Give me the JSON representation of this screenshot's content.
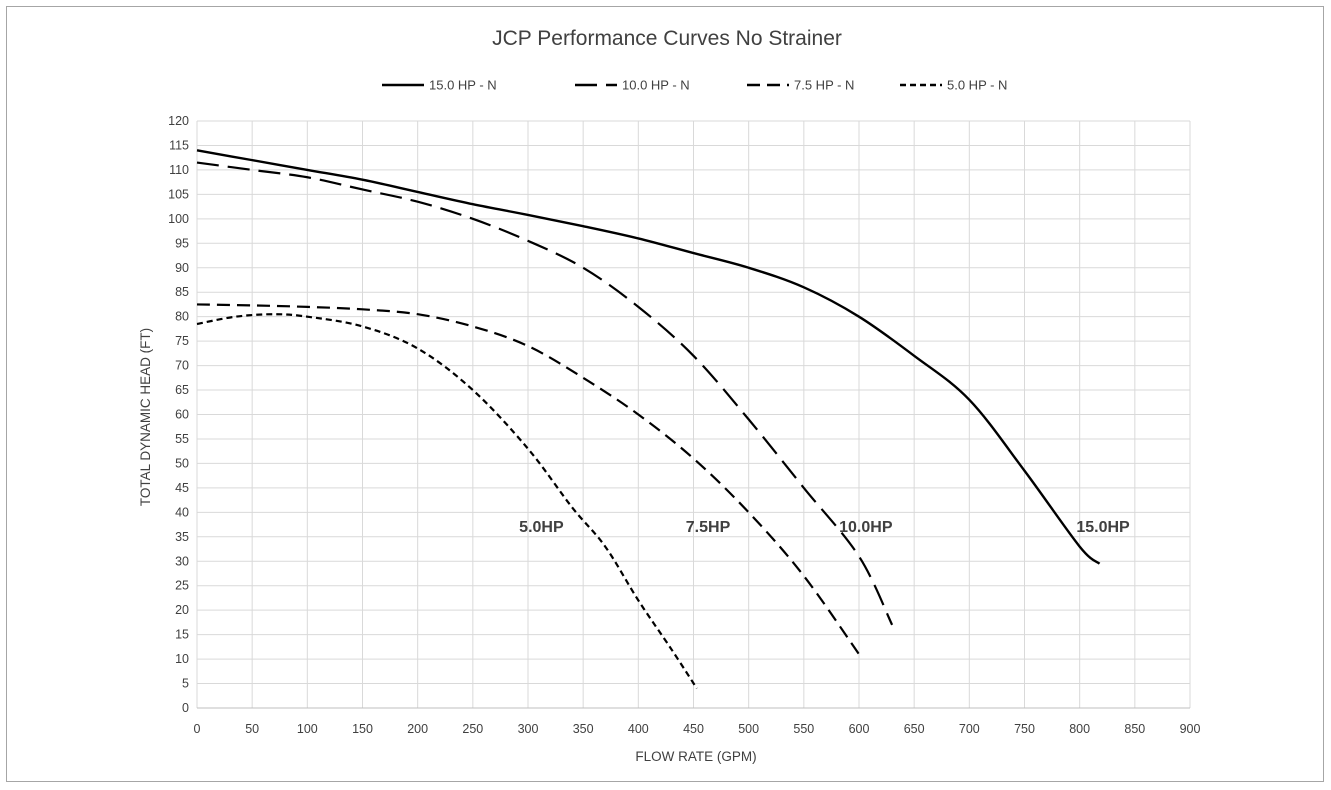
{
  "chart_data": {
    "type": "line",
    "title": "JCP Performance Curves No Strainer",
    "xlabel": "FLOW RATE (GPM)",
    "ylabel": "TOTAL DYNAMIC HEAD (FT)",
    "xlim": [
      0,
      900
    ],
    "ylim": [
      0,
      120
    ],
    "xticks": [
      0,
      50,
      100,
      150,
      200,
      250,
      300,
      350,
      400,
      450,
      500,
      550,
      600,
      650,
      700,
      750,
      800,
      850,
      900
    ],
    "yticks": [
      0,
      5,
      10,
      15,
      20,
      25,
      30,
      35,
      40,
      45,
      50,
      55,
      60,
      65,
      70,
      75,
      80,
      85,
      90,
      95,
      100,
      105,
      110,
      115,
      120
    ],
    "grid": true,
    "legend_position": "top",
    "series": [
      {
        "name": "15.0 HP - N",
        "dash": "solid",
        "label": "15.0HP",
        "label_at": [
          797,
          36
        ],
        "points": [
          [
            0,
            114
          ],
          [
            50,
            112
          ],
          [
            100,
            110
          ],
          [
            150,
            108
          ],
          [
            200,
            105.5
          ],
          [
            250,
            103
          ],
          [
            300,
            100.8
          ],
          [
            350,
            98.5
          ],
          [
            400,
            96
          ],
          [
            450,
            93
          ],
          [
            500,
            90
          ],
          [
            550,
            86
          ],
          [
            600,
            80
          ],
          [
            650,
            72
          ],
          [
            700,
            63
          ],
          [
            750,
            48.5
          ],
          [
            800,
            33
          ],
          [
            818,
            29.5
          ]
        ]
      },
      {
        "name": "10.0 HP - N",
        "dash": "long",
        "label": "10.0HP",
        "label_at": [
          582,
          36
        ],
        "points": [
          [
            0,
            111.5
          ],
          [
            50,
            110
          ],
          [
            100,
            108.5
          ],
          [
            150,
            106
          ],
          [
            200,
            103.5
          ],
          [
            250,
            100
          ],
          [
            300,
            95.5
          ],
          [
            350,
            90
          ],
          [
            400,
            82
          ],
          [
            450,
            72
          ],
          [
            500,
            59
          ],
          [
            550,
            45
          ],
          [
            600,
            31
          ],
          [
            630,
            17
          ]
        ]
      },
      {
        "name": "7.5 HP - N",
        "dash": "medium",
        "label": "7.5HP",
        "label_at": [
          443,
          36
        ],
        "points": [
          [
            0,
            82.5
          ],
          [
            50,
            82.3
          ],
          [
            100,
            82
          ],
          [
            150,
            81.5
          ],
          [
            200,
            80.5
          ],
          [
            250,
            78
          ],
          [
            300,
            74
          ],
          [
            350,
            67.5
          ],
          [
            400,
            60
          ],
          [
            450,
            51
          ],
          [
            500,
            40
          ],
          [
            550,
            27
          ],
          [
            600,
            11
          ]
        ]
      },
      {
        "name": "5.0 HP - N",
        "dash": "short",
        "label": "5.0HP",
        "label_at": [
          292,
          36
        ],
        "points": [
          [
            0,
            78.5
          ],
          [
            35,
            80
          ],
          [
            70,
            80.5
          ],
          [
            100,
            80
          ],
          [
            150,
            78
          ],
          [
            200,
            73.5
          ],
          [
            250,
            65
          ],
          [
            300,
            53
          ],
          [
            340,
            41
          ],
          [
            370,
            33
          ],
          [
            400,
            22
          ],
          [
            430,
            12
          ],
          [
            453,
            4
          ]
        ]
      }
    ]
  }
}
